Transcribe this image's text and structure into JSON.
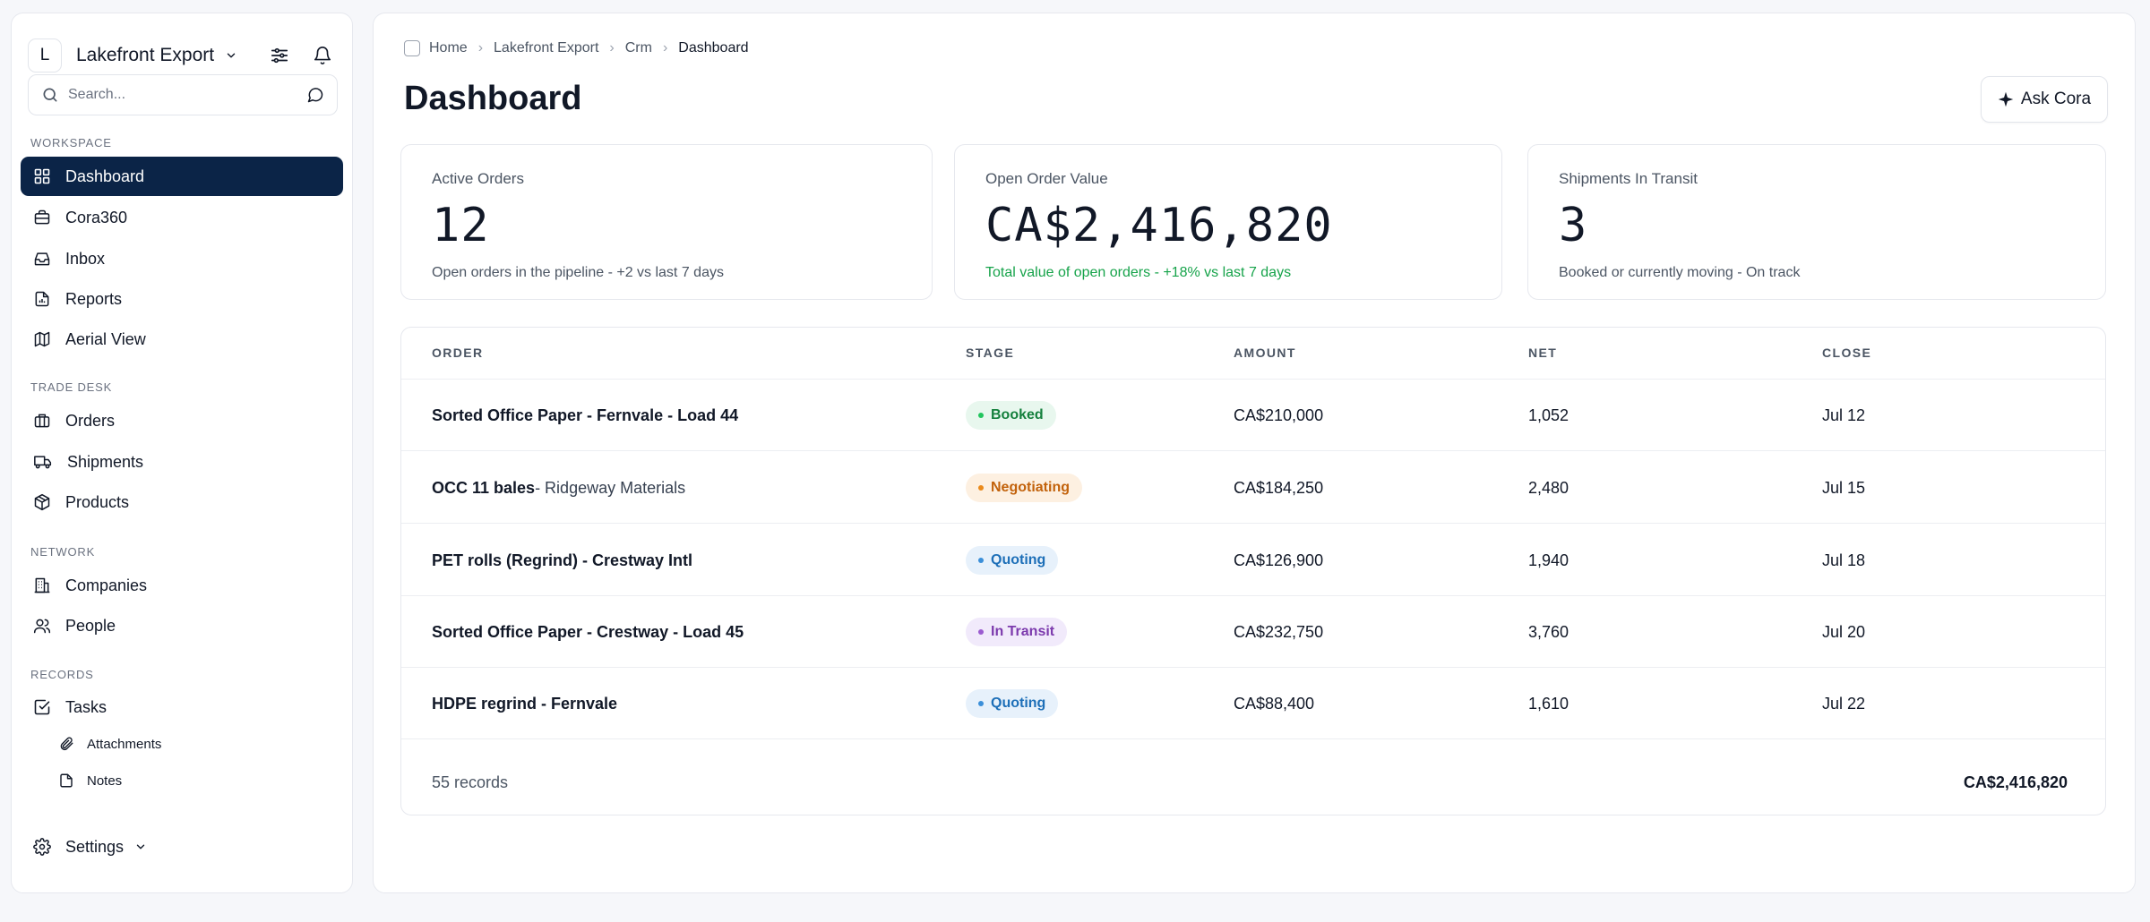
{
  "workspace": {
    "avatar_letter": "L",
    "name": "Lakefront Export"
  },
  "search": {
    "placeholder": "Search..."
  },
  "sidebar": {
    "sections": [
      {
        "label": "Workspace",
        "items": [
          {
            "label": "Dashboard",
            "icon": "grid-icon",
            "active": true
          },
          {
            "label": "Cora360",
            "icon": "briefcase-icon"
          },
          {
            "label": "Inbox",
            "icon": "inbox-icon"
          },
          {
            "label": "Reports",
            "icon": "report-icon"
          },
          {
            "label": "Aerial View",
            "icon": "map-icon"
          }
        ]
      },
      {
        "label": "Trade Desk",
        "items": [
          {
            "label": "Orders",
            "icon": "orders-icon"
          },
          {
            "label": "Shipments",
            "icon": "truck-icon"
          },
          {
            "label": "Products",
            "icon": "box-icon"
          }
        ]
      },
      {
        "label": "Network",
        "items": [
          {
            "label": "Companies",
            "icon": "building-icon"
          },
          {
            "label": "People",
            "icon": "people-icon"
          }
        ]
      },
      {
        "label": "Records",
        "items": [
          {
            "label": "Tasks",
            "icon": "checkbox-icon"
          },
          {
            "label": "Attachments",
            "icon": "paperclip-icon",
            "sub": true
          },
          {
            "label": "Notes",
            "icon": "note-icon",
            "sub": true
          }
        ]
      }
    ],
    "settings_label": "Settings"
  },
  "breadcrumb": [
    "Home",
    "Lakefront Export",
    "Crm",
    "Dashboard"
  ],
  "page": {
    "title": "Dashboard",
    "ask_label": "Ask Cora"
  },
  "kpis": [
    {
      "label": "Active Orders",
      "value": "12",
      "sub": "Open orders in the pipeline - +2 vs last 7 days",
      "positive": false
    },
    {
      "label": "Open Order Value",
      "value": "CA$2,416,820",
      "sub": "Total value of open orders - +18% vs last 7 days",
      "positive": true
    },
    {
      "label": "Shipments In Transit",
      "value": "3",
      "sub": "Booked or currently moving - On track",
      "positive": false
    }
  ],
  "table": {
    "columns": [
      "Order",
      "Stage",
      "Amount",
      "Net",
      "Close"
    ],
    "rows": [
      {
        "order": "Sorted Office Paper - Fernvale - Load 44",
        "order_extra": "",
        "stage": "Booked",
        "amount": "CA$210,000",
        "net": "1,052",
        "close": "Jul 12"
      },
      {
        "order": "OCC 11 bales",
        "order_extra": " - Ridgeway Materials",
        "stage": "Negotiating",
        "amount": "CA$184,250",
        "net": "2,480",
        "close": "Jul 15"
      },
      {
        "order": "PET rolls (Regrind) - Crestway Intl",
        "order_extra": "",
        "stage": "Quoting",
        "amount": "CA$126,900",
        "net": "1,940",
        "close": "Jul 18"
      },
      {
        "order": "Sorted Office Paper - Crestway - Load 45",
        "order_extra": "",
        "stage": "In Transit",
        "amount": "CA$232,750",
        "net": "3,760",
        "close": "Jul 20"
      },
      {
        "order": "HDPE regrind - Fernvale",
        "order_extra": "",
        "stage": "Quoting",
        "amount": "CA$88,400",
        "net": "1,610",
        "close": "Jul 22"
      }
    ],
    "footer_count": "55 records",
    "footer_total": "CA$2,416,820"
  },
  "colors": {
    "accent": "#0b2447",
    "positive": "#16a34a",
    "stage": {
      "Booked": {
        "bg": "#e8f7ee",
        "fg": "#15803d",
        "dot": "#22c55e"
      },
      "Negotiating": {
        "bg": "#fdf0e1",
        "fg": "#c2620b",
        "dot": "#ea8a1b"
      },
      "Quoting": {
        "bg": "#e7f1fb",
        "fg": "#1d6fb8",
        "dot": "#3b8fd9"
      },
      "In Transit": {
        "bg": "#f1eafb",
        "fg": "#7c3aad",
        "dot": "#9b5bd0"
      }
    }
  }
}
